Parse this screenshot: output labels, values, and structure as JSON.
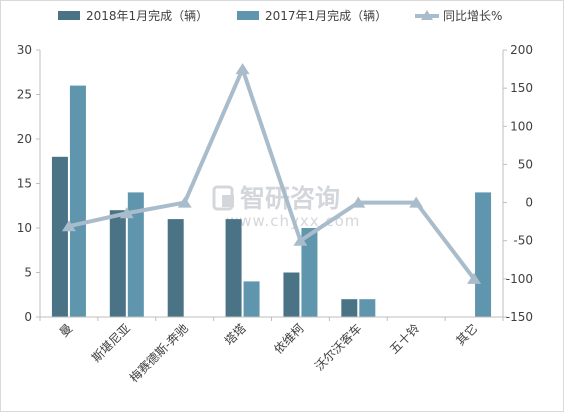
{
  "chart_data": {
    "type": "bar",
    "categories": [
      "曼",
      "斯堪尼亚",
      "梅赛德斯-奔驰",
      "塔塔",
      "依维柯",
      "沃尔沃客车",
      "五十铃",
      "其它"
    ],
    "series": [
      {
        "name": "2018年1月完成（辆）",
        "type": "bar",
        "axis": "left",
        "color": "#4a7486",
        "values": [
          18,
          12,
          11,
          11,
          5,
          2,
          null,
          null
        ]
      },
      {
        "name": "2017年1月完成（辆）",
        "type": "bar",
        "axis": "left",
        "color": "#5f95ad",
        "values": [
          26,
          14,
          null,
          4,
          10,
          2,
          null,
          14
        ]
      },
      {
        "name": "同比增长%",
        "type": "line",
        "axis": "right",
        "color": "#a9bccb",
        "values": [
          -31,
          -14,
          0,
          175,
          -50,
          0,
          0,
          -100
        ]
      }
    ],
    "y_left": {
      "min": 0,
      "max": 30,
      "ticks": [
        0,
        5,
        10,
        15,
        20,
        25,
        30
      ]
    },
    "y_right": {
      "min": -150,
      "max": 200,
      "ticks": [
        -150,
        -100,
        -50,
        0,
        50,
        100,
        150,
        200
      ]
    },
    "title": "",
    "xlabel": "",
    "ylabel": "",
    "grid": false,
    "legend_position": "top"
  },
  "watermark": {
    "brand": "智研咨询",
    "url": "www.chyxx.com"
  }
}
